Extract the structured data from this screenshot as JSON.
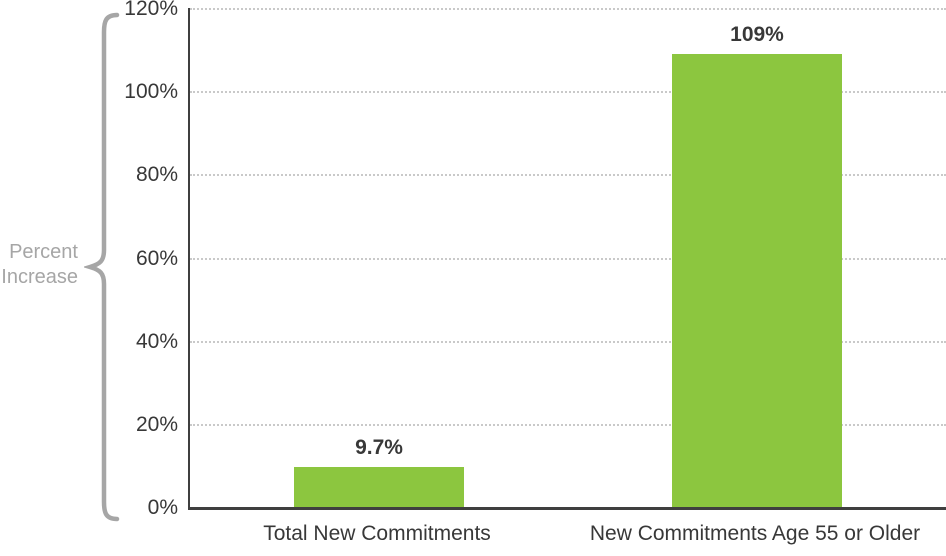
{
  "chart_data": {
    "type": "bar",
    "title": "",
    "categories": [
      "Total New Commitments",
      "New Commitments Age 55 or Older"
    ],
    "values": [
      9.7,
      109
    ],
    "value_labels": [
      "9.7%",
      "109%"
    ],
    "xlabel": "",
    "ylabel": "Percent Increase",
    "ylim": [
      0,
      120
    ],
    "ytick_step": 20,
    "ytick_labels": [
      "0%",
      "20%",
      "40%",
      "60%",
      "80%",
      "100%",
      "120%"
    ],
    "grid": "horizontal-dotted",
    "legend": "none",
    "bar_color": "#8cc63f"
  },
  "colors": {
    "bar": "#8cc63f",
    "axis": "#3f3f3f",
    "grid": "#c9c9c9",
    "text": "#383838",
    "muted": "#a6a6a6",
    "background": "#ffffff"
  }
}
